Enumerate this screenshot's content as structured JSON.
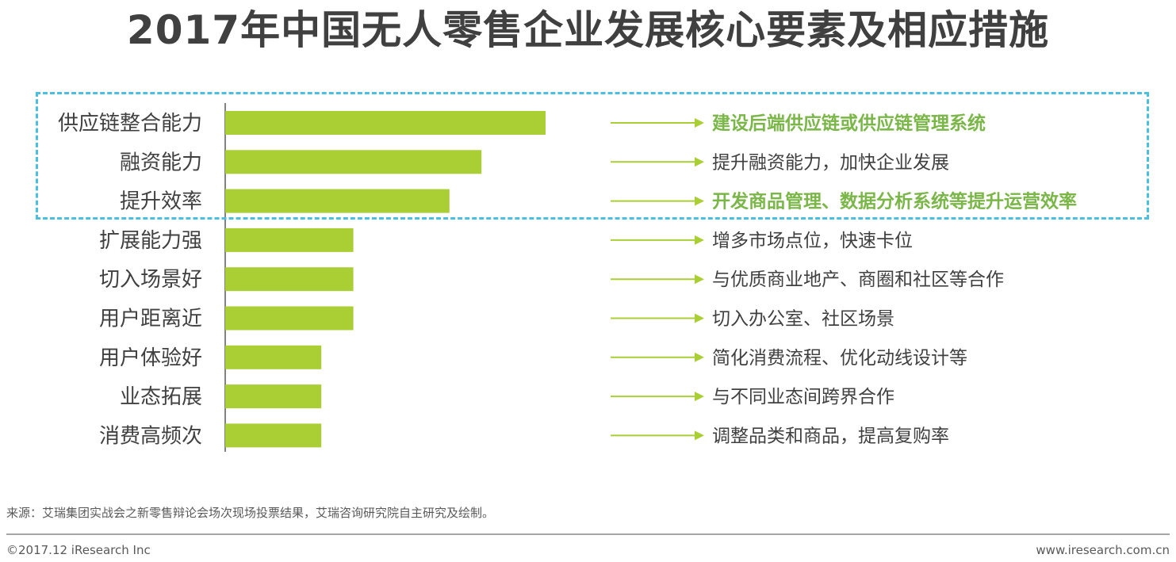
{
  "page": {
    "title": "2017年中国无人零售企业发展核心要素及相应措施",
    "source": "来源：艾瑞集团实战会之新零售辩论会场次现场投票结果，艾瑞咨询研究院自主研究及绘制。",
    "copyright": "©2017.12 iResearch Inc",
    "website": "www.iresearch.com.cn"
  },
  "colors": {
    "bar": "#aacf35",
    "arrow": "#aacf35",
    "highlight_text": "#7ab648",
    "normal_text": "#404040",
    "box_border": "#4bbfe0",
    "axis": "#595959"
  },
  "chart_data": {
    "type": "bar",
    "orientation": "horizontal",
    "categories": [
      "供应链整合能力",
      "融资能力",
      "提升效率",
      "扩展能力强",
      "切入场景好",
      "用户距离近",
      "用户体验好",
      "业态拓展",
      "消费高频次"
    ],
    "values": [
      100,
      80,
      70,
      40,
      40,
      40,
      30,
      30,
      30
    ],
    "measures": [
      "建设后端供应链或供应链管理系统",
      "提升融资能力，加快企业发展",
      "开发商品管理、数据分析系统等提升运营效率",
      "增多市场点位，快速卡位",
      "与优质商业地产、商圈和社区等合作",
      "切入办公室、社区场景",
      "简化消费流程、优化动线设计等",
      "与不同业态间跨界合作",
      "调整品类和商品，提高复购率"
    ],
    "highlighted": [
      true,
      false,
      true,
      false,
      false,
      false,
      false,
      false,
      false
    ],
    "boxed": [
      true,
      true,
      true,
      false,
      false,
      false,
      false,
      false,
      false
    ]
  }
}
